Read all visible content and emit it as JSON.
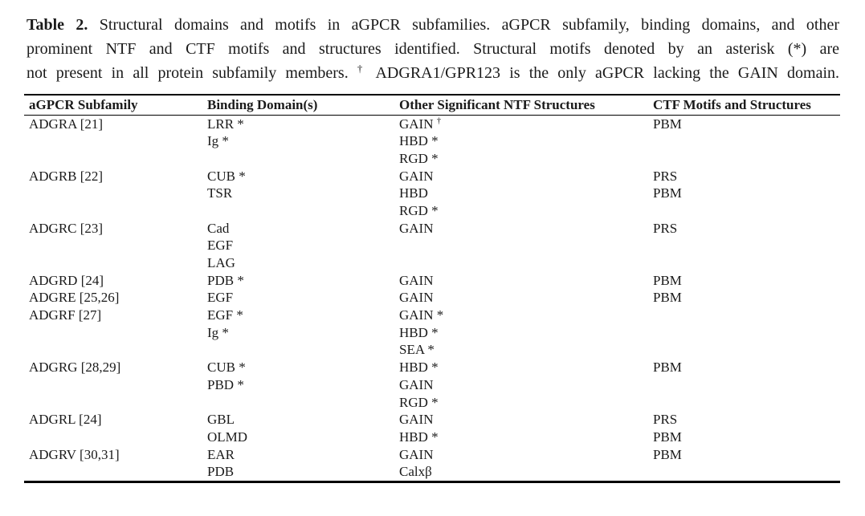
{
  "colors": {
    "background": "#ffffff",
    "text": "#1a1a1a",
    "rule": "#000000"
  },
  "caption": {
    "label": "Table 2.",
    "line1_rest": " Structural domains and motifs in aGPCR subfamilies. aGPCR subfamily, binding domains, and other",
    "line2": "prominent NTF and CTF motifs and structures identified. Structural motifs denoted by an asterisk (*) are",
    "line3": "not present in all protein subfamily members. † ADGRA1/GPR123 is the only aGPCR lacking the GAIN domain."
  },
  "table": {
    "columns": [
      "aGPCR Subfamily",
      "Binding Domain(s)",
      "Other Significant NTF Structures",
      "CTF Motifs and Structures"
    ],
    "rows": [
      [
        "ADGRA [21]",
        "LRR *",
        "GAIN †",
        "PBM"
      ],
      [
        "",
        "Ig *",
        "HBD *",
        ""
      ],
      [
        "",
        "",
        "RGD *",
        ""
      ],
      [
        "ADGRB [22]",
        "CUB *",
        "GAIN",
        "PRS"
      ],
      [
        "",
        "TSR",
        "HBD",
        "PBM"
      ],
      [
        "",
        "",
        "RGD *",
        ""
      ],
      [
        "ADGRC [23]",
        "Cad",
        "GAIN",
        "PRS"
      ],
      [
        "",
        "EGF",
        "",
        ""
      ],
      [
        "",
        "LAG",
        "",
        ""
      ],
      [
        "ADGRD [24]",
        "PDB *",
        "GAIN",
        "PBM"
      ],
      [
        "ADGRE [25,26]",
        "EGF",
        "GAIN",
        "PBM"
      ],
      [
        "ADGRF [27]",
        "EGF *",
        "GAIN *",
        ""
      ],
      [
        "",
        "Ig *",
        "HBD *",
        ""
      ],
      [
        "",
        "",
        "SEA *",
        ""
      ],
      [
        "ADGRG [28,29]",
        "CUB *",
        "HBD *",
        "PBM"
      ],
      [
        "",
        "PBD *",
        "GAIN",
        ""
      ],
      [
        "",
        "",
        "RGD *",
        ""
      ],
      [
        "ADGRL [24]",
        "GBL",
        "GAIN",
        "PRS"
      ],
      [
        "",
        "OLMD",
        "HBD *",
        "PBM"
      ],
      [
        "ADGRV [30,31]",
        "EAR",
        "GAIN",
        "PBM"
      ],
      [
        "",
        "PDB",
        "Calxβ",
        ""
      ]
    ]
  }
}
